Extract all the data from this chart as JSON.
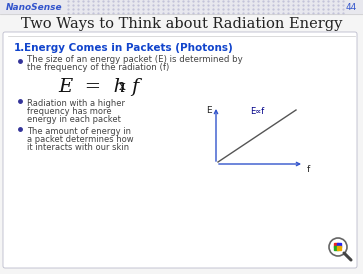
{
  "slide_bg": "#f5f5f5",
  "header_bg": "#e8e8ee",
  "header_text": "NanoSense",
  "header_color": "#3355cc",
  "page_number": "44",
  "page_color": "#3355cc",
  "title": "Two Ways to Think about Radiation Energy",
  "title_color": "#222222",
  "title_fontsize": 10.5,
  "section_label": "1.",
  "section_title": "Energy Comes in Packets (Photons)",
  "section_color": "#1144cc",
  "bullet1_line1": "The size of an energy packet (E) is determined by",
  "bullet1_line2": "the frequency of the radiation (f)",
  "formula_main": "E = h",
  "formula_sub": "x",
  "formula_end": "f",
  "bullet2_line1": "Radiation with a higher",
  "bullet2_line2": "frequency has more",
  "bullet2_line3": "energy in each packet",
  "bullet3_line1": "The amount of energy in",
  "bullet3_line2": "a packet determines how",
  "bullet3_line3": "it interacts with our skin",
  "graph_ylabel": "E",
  "graph_xlabel": "f",
  "graph_annotation": "E∝f",
  "axis_color": "#3355cc",
  "graph_line_color": "#555555",
  "bullet_color": "#333399",
  "text_color": "#444444",
  "content_border_color": "#bbbbcc",
  "dot_pattern_color": "#c0c0d8"
}
